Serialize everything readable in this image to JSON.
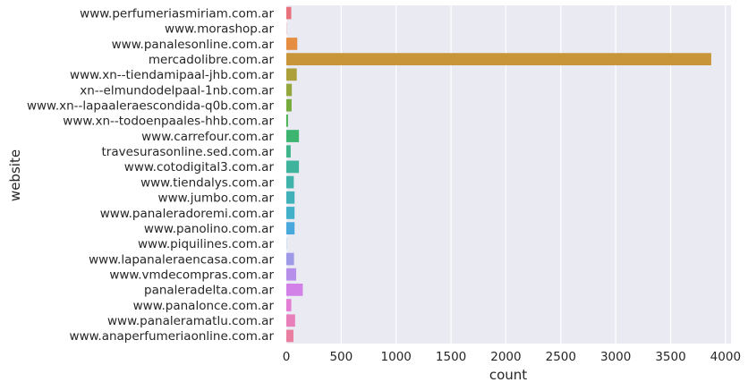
{
  "chart_data": {
    "type": "bar",
    "orientation": "horizontal",
    "title": "",
    "xlabel": "count",
    "ylabel": "website",
    "xlim": [
      0,
      4050
    ],
    "xticks": [
      0,
      500,
      1000,
      1500,
      2000,
      2500,
      3000,
      3500,
      4000
    ],
    "xtick_labels": [
      "0",
      "500",
      "1000",
      "1500",
      "2000",
      "2500",
      "3000",
      "3500",
      "4000"
    ],
    "grid": true,
    "legend": "none",
    "categories": [
      "www.perfumeriasmiriam.com.ar",
      "www.morashop.ar",
      "www.panalesonline.com.ar",
      "mercadolibre.com.ar",
      "www.xn--tiendamipaal-jhb.com.ar",
      "xn--elmundodelpaal-1nb.com.ar",
      "www.xn--lapaaleraescondida-q0b.com.ar",
      "www.xn--todoenpaales-hhb.com.ar",
      "www.carrefour.com.ar",
      "travesurasonline.sed.com.ar",
      "www.cotodigital3.com.ar",
      "www.tiendalys.com.ar",
      "www.jumbo.com.ar",
      "www.panaleradoremi.com.ar",
      "www.panolino.com.ar",
      "www.piquilines.com.ar",
      "www.lapanaleraencasa.com.ar",
      "www.vmdecompras.com.ar",
      "panaleradelta.com.ar",
      "www.panalonce.com.ar",
      "www.panaleramatlu.com.ar",
      "www.anaperfumeriaonline.com.ar"
    ],
    "values": [
      45,
      2,
      100,
      3870,
      95,
      50,
      48,
      15,
      115,
      40,
      115,
      68,
      75,
      75,
      75,
      2,
      70,
      90,
      150,
      45,
      80,
      65
    ],
    "colors": [
      "#e9717b",
      "#e7746e",
      "#e58e42",
      "#c99539",
      "#aba03a",
      "#93a73c",
      "#75ab3c",
      "#42b04a",
      "#3db571",
      "#3fb48b",
      "#3fb39c",
      "#3fb2aa",
      "#40b1b8",
      "#43b0c9",
      "#4aa9dc",
      "#76a2e3",
      "#9e9ae8",
      "#b58fea",
      "#d281e8",
      "#e47ed4",
      "#e87fbb",
      "#ea7ea1"
    ]
  }
}
